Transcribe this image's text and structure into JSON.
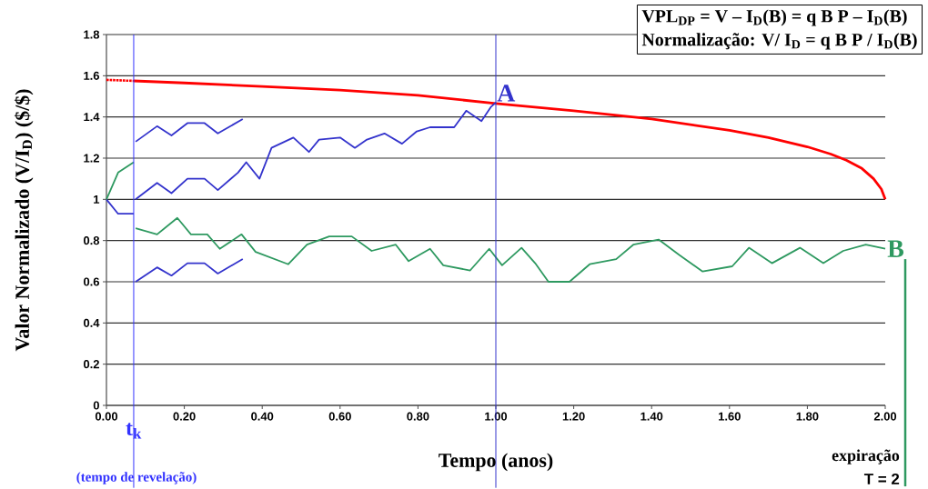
{
  "chart_data": {
    "type": "line",
    "xlabel": "Tempo (anos)",
    "ylabel": "Valor Normalizado (V/I$_{D}$) ($/$)",
    "xlim": [
      0,
      2
    ],
    "ylim": [
      0,
      1.8
    ],
    "xticks": [
      {
        "value": 0,
        "label": "0.00"
      },
      {
        "value": 0.2,
        "label": "0.20"
      },
      {
        "value": 0.4,
        "label": "0.40"
      },
      {
        "value": 0.6,
        "label": "0.60"
      },
      {
        "value": 0.8,
        "label": "0.80"
      },
      {
        "value": 1.0,
        "label": "1.00"
      },
      {
        "value": 1.2,
        "label": "1.20"
      },
      {
        "value": 1.4,
        "label": "1.40"
      },
      {
        "value": 1.6,
        "label": "1.60"
      },
      {
        "value": 1.8,
        "label": "1.80"
      },
      {
        "value": 2.0,
        "label": "2.00"
      }
    ],
    "yticks": [
      0,
      0.2,
      0.4,
      0.6,
      0.8,
      1,
      1.2,
      1.4,
      1.6,
      1.8
    ],
    "grid": "y",
    "marker": "none",
    "series": [
      {
        "color": "#ff0000",
        "line_style": "dotted",
        "x": [
          0,
          0.07
        ],
        "values": [
          1.58,
          1.575
        ]
      },
      {
        "color": "#ff0000",
        "x": [
          0.07,
          0.2,
          0.4,
          0.6,
          0.8,
          1.0,
          1.2,
          1.4,
          1.6,
          1.7,
          1.8,
          1.86,
          1.9,
          1.94,
          1.97,
          1.99,
          2.0
        ],
        "values": [
          1.575,
          1.565,
          1.548,
          1.53,
          1.505,
          1.465,
          1.43,
          1.39,
          1.335,
          1.3,
          1.255,
          1.22,
          1.19,
          1.15,
          1.1,
          1.05,
          1.0
        ]
      },
      {
        "color": "#3333cc",
        "x": [
          0,
          0.03,
          0.07
        ],
        "values": [
          1.0,
          0.93,
          0.93
        ]
      },
      {
        "color": "#2e9960",
        "x": [
          0,
          0.03,
          0.07
        ],
        "values": [
          1.0,
          1.13,
          1.18
        ]
      },
      {
        "color": "#3333cc",
        "x": [
          0.075,
          0.13,
          0.167,
          0.208,
          0.252,
          0.286,
          0.35
        ],
        "values": [
          1.28,
          1.355,
          1.31,
          1.37,
          1.37,
          1.32,
          1.39
        ]
      },
      {
        "color": "#3333cc",
        "x": [
          0.075,
          0.13,
          0.167,
          0.208,
          0.252,
          0.286,
          0.338,
          0.359,
          0.393,
          0.424,
          0.48,
          0.52,
          0.546,
          0.6,
          0.638,
          0.669,
          0.714,
          0.759,
          0.797,
          0.831,
          0.893,
          0.924,
          0.963,
          0.988,
          1.0
        ],
        "values": [
          1.0,
          1.08,
          1.03,
          1.1,
          1.1,
          1.045,
          1.13,
          1.18,
          1.1,
          1.25,
          1.3,
          1.23,
          1.29,
          1.3,
          1.25,
          1.29,
          1.32,
          1.27,
          1.33,
          1.35,
          1.35,
          1.43,
          1.38,
          1.45,
          1.47
        ]
      },
      {
        "color": "#3333cc",
        "x": [
          0.075,
          0.13,
          0.167,
          0.208,
          0.252,
          0.286,
          0.35
        ],
        "values": [
          0.6,
          0.67,
          0.63,
          0.69,
          0.69,
          0.64,
          0.71
        ]
      },
      {
        "color": "#2e9960",
        "x": [
          0.075,
          0.13,
          0.182,
          0.217,
          0.259,
          0.291,
          0.347,
          0.383,
          0.467,
          0.515,
          0.572,
          0.63,
          0.681,
          0.743,
          0.776,
          0.831,
          0.865,
          0.934,
          0.983,
          1.016,
          1.066,
          1.101,
          1.135,
          1.189,
          1.241,
          1.309,
          1.353,
          1.418,
          1.471,
          1.531,
          1.607,
          1.65,
          1.709,
          1.781,
          1.841,
          1.892,
          1.95,
          2.0
        ],
        "values": [
          0.86,
          0.83,
          0.91,
          0.83,
          0.83,
          0.76,
          0.83,
          0.745,
          0.685,
          0.78,
          0.82,
          0.82,
          0.75,
          0.78,
          0.7,
          0.76,
          0.68,
          0.655,
          0.76,
          0.68,
          0.765,
          0.69,
          0.6,
          0.6,
          0.685,
          0.71,
          0.78,
          0.805,
          0.73,
          0.65,
          0.675,
          0.765,
          0.69,
          0.765,
          0.69,
          0.75,
          0.78,
          0.76
        ]
      }
    ],
    "ref_lines": [
      {
        "axis": "x",
        "value": 0.07,
        "label": "t$_{k}$",
        "color": "#3333ff"
      },
      {
        "axis": "x",
        "value": 1.0,
        "color": "#3333cc"
      }
    ],
    "annotations": [
      {
        "text": "A",
        "x": 1.0,
        "y": 1.47
      },
      {
        "text": "B",
        "x": 2.0,
        "y": 0.76
      },
      "(tempo de revelação)",
      "expiração",
      "T = 2",
      "VPL$_{DP}$ = V – I$_{D}$(B) = q B P – I$_{D}$(B)",
      "Normalização: V/ I$_{D}$ = q B P / I$_{D}$(B)"
    ]
  }
}
